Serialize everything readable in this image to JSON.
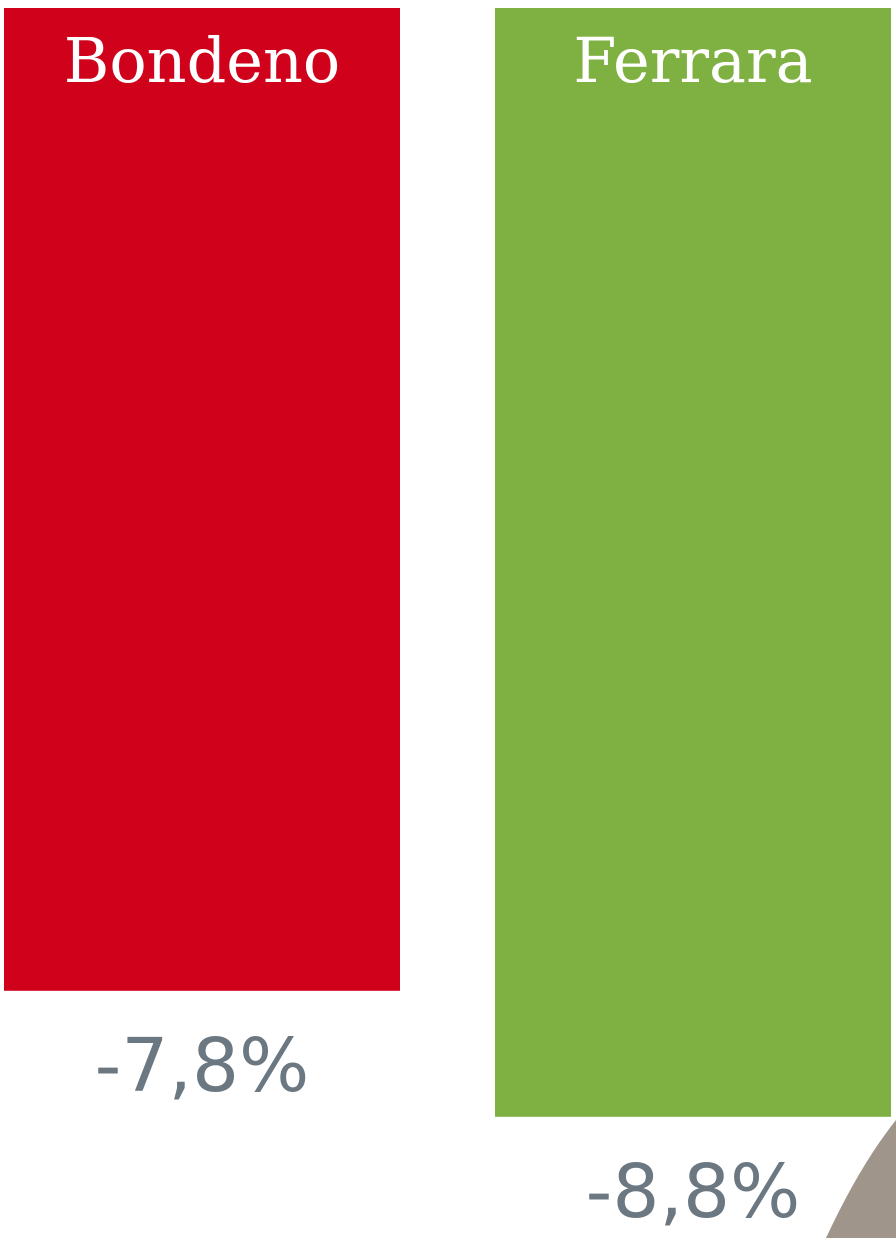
{
  "chart_data": {
    "type": "bar",
    "categories": [
      "Bondeno",
      "Ferrara"
    ],
    "values": [
      -7.8,
      -8.8
    ],
    "value_labels": [
      "-7,8%",
      "-8,8%"
    ],
    "colors": [
      "#d0021b",
      "#7fb042"
    ],
    "extra_bar_color": "#a0958a",
    "title": "",
    "xlabel": "",
    "ylabel": ""
  }
}
